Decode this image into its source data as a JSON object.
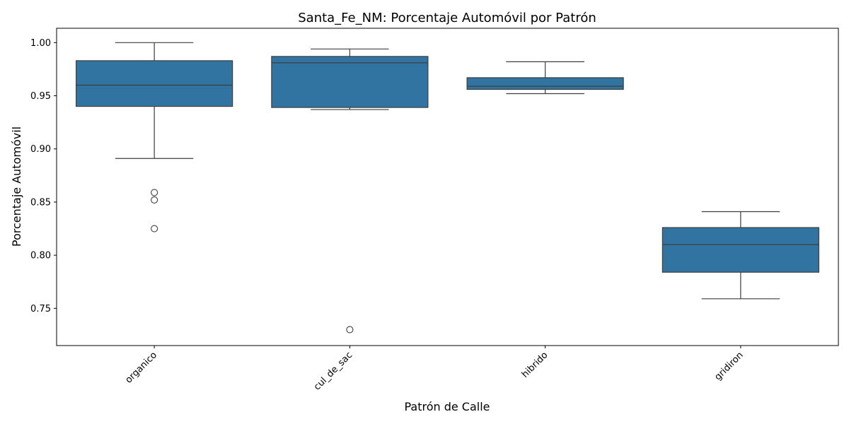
{
  "chart_data": {
    "type": "box",
    "title": "Santa_Fe_NM: Porcentaje Automóvil por Patrón",
    "xlabel": "Patrón de Calle",
    "ylabel": "Porcentaje Automóvil",
    "ylim": [
      0.715,
      1.0135
    ],
    "yticks": [
      0.75,
      0.8,
      0.85,
      0.9,
      0.95,
      1.0
    ],
    "ytick_labels": [
      "0.75",
      "0.80",
      "0.85",
      "0.90",
      "0.95",
      "1.00"
    ],
    "box_color": "#3274a1",
    "categories": [
      "organico",
      "cul_de_sac",
      "hibrido",
      "gridiron"
    ],
    "boxes": [
      {
        "whisker_low": 0.891,
        "q1": 0.94,
        "median": 0.96,
        "q3": 0.983,
        "whisker_high": 1.0,
        "outliers": [
          0.859,
          0.852,
          0.825
        ]
      },
      {
        "whisker_low": 0.937,
        "q1": 0.939,
        "median": 0.981,
        "q3": 0.987,
        "whisker_high": 0.994,
        "outliers": [
          0.73
        ]
      },
      {
        "whisker_low": 0.952,
        "q1": 0.956,
        "median": 0.959,
        "q3": 0.967,
        "whisker_high": 0.982,
        "outliers": []
      },
      {
        "whisker_low": 0.759,
        "q1": 0.784,
        "median": 0.81,
        "q3": 0.826,
        "whisker_high": 0.841,
        "outliers": []
      }
    ]
  }
}
